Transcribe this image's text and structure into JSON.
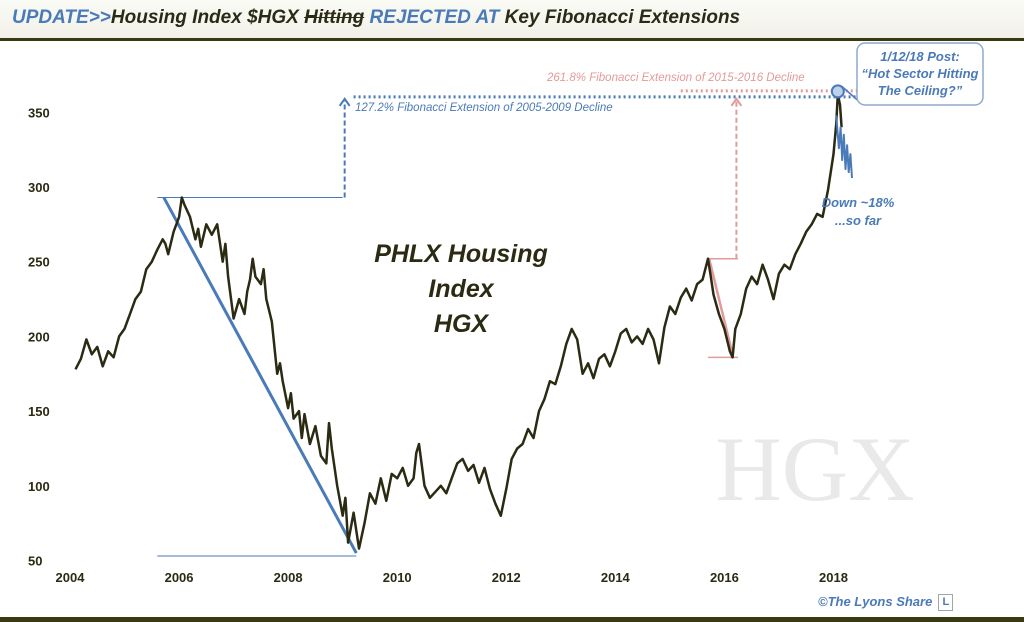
{
  "title": {
    "part1": "UPDATE>>",
    "part2": "Housing Index $HGX ",
    "part3": "Hitting",
    "part4": " REJECTED AT",
    "part5": " Key Fibonacci Extensions"
  },
  "watermark": "HGX",
  "credit": "©The Lyons Share",
  "credit_logo": "L",
  "colors": {
    "price": "#2b2a12",
    "blue": "#4a7ab8",
    "pink": "#e39a9a",
    "axis": "#3a3a12"
  },
  "chart_data": {
    "type": "line",
    "title_lines": [
      "PHLX Housing",
      "Index",
      "HGX"
    ],
    "x_ticks": [
      "2004",
      "2006",
      "2008",
      "2010",
      "2012",
      "2014",
      "2016",
      "2018"
    ],
    "y_ticks": [
      "50",
      "100",
      "150",
      "200",
      "250",
      "300",
      "350"
    ],
    "xlim": [
      2004.0,
      2019.0
    ],
    "ylim": [
      47,
      385
    ],
    "series": [
      {
        "points": [
          [
            2004.1,
            178
          ],
          [
            2004.2,
            185
          ],
          [
            2004.3,
            198
          ],
          [
            2004.4,
            188
          ],
          [
            2004.5,
            193
          ],
          [
            2004.6,
            180
          ],
          [
            2004.7,
            190
          ],
          [
            2004.8,
            186
          ],
          [
            2004.9,
            200
          ],
          [
            2005.0,
            205
          ],
          [
            2005.1,
            215
          ],
          [
            2005.2,
            225
          ],
          [
            2005.3,
            230
          ],
          [
            2005.4,
            245
          ],
          [
            2005.5,
            250
          ],
          [
            2005.6,
            258
          ],
          [
            2005.7,
            265
          ],
          [
            2005.75,
            262
          ],
          [
            2005.8,
            255
          ],
          [
            2005.9,
            270
          ],
          [
            2006.0,
            280
          ],
          [
            2006.05,
            293
          ],
          [
            2006.1,
            288
          ],
          [
            2006.2,
            280
          ],
          [
            2006.3,
            265
          ],
          [
            2006.35,
            272
          ],
          [
            2006.4,
            260
          ],
          [
            2006.5,
            275
          ],
          [
            2006.6,
            268
          ],
          [
            2006.7,
            275
          ],
          [
            2006.8,
            250
          ],
          [
            2006.85,
            262
          ],
          [
            2006.9,
            240
          ],
          [
            2007.0,
            212
          ],
          [
            2007.1,
            225
          ],
          [
            2007.2,
            215
          ],
          [
            2007.25,
            230
          ],
          [
            2007.3,
            238
          ],
          [
            2007.35,
            252
          ],
          [
            2007.4,
            240
          ],
          [
            2007.5,
            235
          ],
          [
            2007.55,
            245
          ],
          [
            2007.6,
            225
          ],
          [
            2007.7,
            210
          ],
          [
            2007.8,
            175
          ],
          [
            2007.85,
            182
          ],
          [
            2007.9,
            170
          ],
          [
            2008.0,
            152
          ],
          [
            2008.05,
            162
          ],
          [
            2008.1,
            145
          ],
          [
            2008.2,
            150
          ],
          [
            2008.25,
            132
          ],
          [
            2008.3,
            148
          ],
          [
            2008.4,
            128
          ],
          [
            2008.5,
            140
          ],
          [
            2008.6,
            120
          ],
          [
            2008.7,
            115
          ],
          [
            2008.75,
            142
          ],
          [
            2008.8,
            125
          ],
          [
            2008.9,
            100
          ],
          [
            2009.0,
            80
          ],
          [
            2009.05,
            92
          ],
          [
            2009.1,
            62
          ],
          [
            2009.2,
            82
          ],
          [
            2009.25,
            70
          ],
          [
            2009.3,
            58
          ],
          [
            2009.4,
            75
          ],
          [
            2009.5,
            95
          ],
          [
            2009.6,
            88
          ],
          [
            2009.7,
            105
          ],
          [
            2009.8,
            90
          ],
          [
            2009.9,
            108
          ],
          [
            2010.0,
            105
          ],
          [
            2010.1,
            112
          ],
          [
            2010.2,
            100
          ],
          [
            2010.3,
            105
          ],
          [
            2010.35,
            122
          ],
          [
            2010.4,
            128
          ],
          [
            2010.5,
            100
          ],
          [
            2010.6,
            92
          ],
          [
            2010.7,
            96
          ],
          [
            2010.8,
            100
          ],
          [
            2010.9,
            95
          ],
          [
            2011.0,
            105
          ],
          [
            2011.1,
            115
          ],
          [
            2011.2,
            118
          ],
          [
            2011.3,
            110
          ],
          [
            2011.4,
            114
          ],
          [
            2011.5,
            102
          ],
          [
            2011.6,
            112
          ],
          [
            2011.7,
            98
          ],
          [
            2011.8,
            88
          ],
          [
            2011.9,
            80
          ],
          [
            2012.0,
            98
          ],
          [
            2012.1,
            118
          ],
          [
            2012.2,
            125
          ],
          [
            2012.3,
            128
          ],
          [
            2012.4,
            138
          ],
          [
            2012.5,
            132
          ],
          [
            2012.6,
            150
          ],
          [
            2012.7,
            158
          ],
          [
            2012.8,
            170
          ],
          [
            2012.9,
            168
          ],
          [
            2013.0,
            180
          ],
          [
            2013.1,
            195
          ],
          [
            2013.2,
            205
          ],
          [
            2013.3,
            198
          ],
          [
            2013.4,
            175
          ],
          [
            2013.5,
            182
          ],
          [
            2013.6,
            172
          ],
          [
            2013.7,
            185
          ],
          [
            2013.8,
            188
          ],
          [
            2013.9,
            180
          ],
          [
            2014.0,
            190
          ],
          [
            2014.1,
            202
          ],
          [
            2014.2,
            205
          ],
          [
            2014.3,
            196
          ],
          [
            2014.4,
            200
          ],
          [
            2014.5,
            195
          ],
          [
            2014.6,
            205
          ],
          [
            2014.7,
            198
          ],
          [
            2014.8,
            182
          ],
          [
            2014.9,
            206
          ],
          [
            2015.0,
            220
          ],
          [
            2015.1,
            215
          ],
          [
            2015.2,
            226
          ],
          [
            2015.3,
            232
          ],
          [
            2015.4,
            224
          ],
          [
            2015.5,
            235
          ],
          [
            2015.6,
            238
          ],
          [
            2015.7,
            252
          ],
          [
            2015.75,
            240
          ],
          [
            2015.8,
            228
          ],
          [
            2015.9,
            215
          ],
          [
            2016.0,
            205
          ],
          [
            2016.1,
            190
          ],
          [
            2016.15,
            186
          ],
          [
            2016.2,
            205
          ],
          [
            2016.3,
            215
          ],
          [
            2016.4,
            232
          ],
          [
            2016.5,
            240
          ],
          [
            2016.6,
            235
          ],
          [
            2016.7,
            248
          ],
          [
            2016.8,
            238
          ],
          [
            2016.9,
            225
          ],
          [
            2017.0,
            242
          ],
          [
            2017.1,
            248
          ],
          [
            2017.2,
            245
          ],
          [
            2017.3,
            255
          ],
          [
            2017.4,
            262
          ],
          [
            2017.5,
            270
          ],
          [
            2017.6,
            275
          ],
          [
            2017.7,
            282
          ],
          [
            2017.8,
            280
          ],
          [
            2017.9,
            298
          ],
          [
            2018.0,
            322
          ],
          [
            2018.05,
            342
          ],
          [
            2018.08,
            362
          ],
          [
            2018.12,
            355
          ],
          [
            2018.15,
            340
          ]
        ]
      },
      {
        "points": [
          [
            2018.05,
            348
          ],
          [
            2018.1,
            326
          ],
          [
            2018.13,
            340
          ],
          [
            2018.16,
            318
          ],
          [
            2018.19,
            335
          ],
          [
            2018.22,
            312
          ],
          [
            2018.25,
            328
          ],
          [
            2018.28,
            310
          ],
          [
            2018.31,
            322
          ],
          [
            2018.34,
            306
          ]
        ]
      }
    ],
    "annotations": {
      "blue_level_label": "127.2% Fibonacci Extension of 2005-2009 Decline",
      "pink_level_label": "261.8% Fibonacci Extension of 2015-2016 Decline",
      "callout_lines": [
        "1/12/18 Post:",
        "“Hot Sector Hitting",
        "The Ceiling?”"
      ],
      "down_lines": [
        "Down ~18%",
        "...so far"
      ]
    }
  }
}
